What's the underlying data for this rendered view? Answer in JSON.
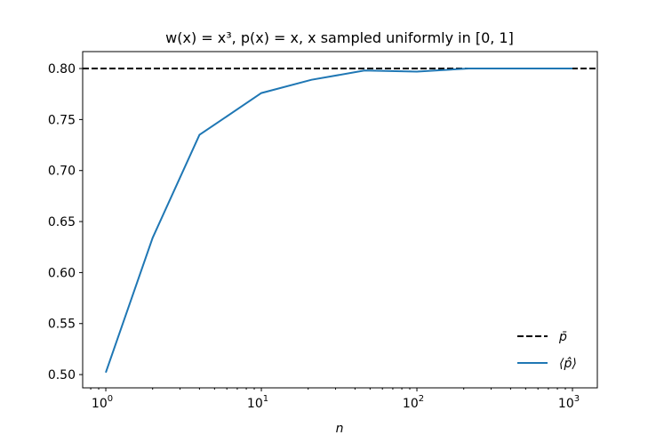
{
  "chart_data": {
    "type": "line",
    "title": "w(x) = x³, p(x) = x, x sampled uniformly in [0, 1]",
    "xlabel": "n",
    "ylabel": "",
    "xscale": "log",
    "xlim": [
      0.71,
      1445
    ],
    "ylim": [
      0.487,
      0.8166
    ],
    "grid": false,
    "legend_placement": "lower-right",
    "xticks": [
      {
        "value": 1,
        "base": "10",
        "exp": "0"
      },
      {
        "value": 10,
        "base": "10",
        "exp": "1"
      },
      {
        "value": 100,
        "base": "10",
        "exp": "2"
      },
      {
        "value": 1000,
        "base": "10",
        "exp": "3"
      }
    ],
    "yticks": [
      "0.50",
      "0.55",
      "0.60",
      "0.65",
      "0.70",
      "0.75",
      "0.80"
    ],
    "series": [
      {
        "name": "p̄",
        "style": "dashed",
        "color": "#000000",
        "type": "hline",
        "y": 0.8
      },
      {
        "name": "⟨p̂⟩",
        "style": "solid",
        "color": "#1f77b4",
        "x": [
          1,
          2,
          4,
          10,
          21,
          46,
          100,
          215,
          464,
          1000
        ],
        "y": [
          0.502,
          0.634,
          0.735,
          0.776,
          0.789,
          0.798,
          0.797,
          0.8,
          0.8,
          0.8
        ]
      }
    ]
  }
}
